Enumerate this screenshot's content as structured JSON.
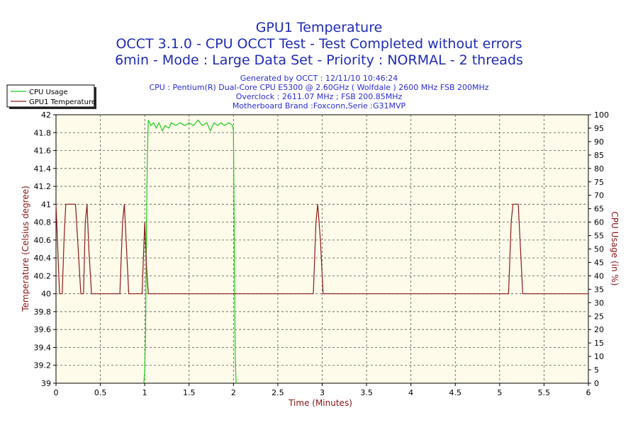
{
  "header": {
    "title_lines": [
      "GPU1 Temperature",
      "OCCT 3.1.0 - CPU OCCT Test - Test Completed without errors",
      "6min - Mode : Large Data Set - Priority : NORMAL - 2 threads"
    ],
    "info_lines": [
      "Generated by OCCT : 12/11/10 10:46:24",
      "CPU : Pentium(R) Dual-Core CPU E5300 @ 2.60GHz ( Wolfdale ) 2600 MHz FSB 200MHz",
      "Overclock : 2611.07 MHz ; FSB 200.85MHz",
      "Motherboard Brand :Foxconn,Serie :G31MVP"
    ]
  },
  "colors": {
    "cpu_usage": "#19cc19",
    "gpu_temp": "#8b1a1a",
    "plot_bg": "#fffbea",
    "grid": "#555555",
    "title": "#1f2bb3",
    "info": "#2b2bd6"
  },
  "chart_data": {
    "type": "line",
    "xlabel": "Time (Minutes)",
    "ylabel": "Temperature (Celsius degree)",
    "y2label": "CPU Usage (in %)",
    "xlim": [
      0,
      6
    ],
    "ylim": [
      39,
      42
    ],
    "y2lim": [
      0,
      100
    ],
    "grid": true,
    "legend_position": "top-left",
    "x_ticks": [
      "0",
      "0.5",
      "1",
      "1.5",
      "2",
      "2.5",
      "3",
      "3.5",
      "4",
      "4.5",
      "5",
      "5.5",
      "6"
    ],
    "y_ticks": [
      "39",
      "39.2",
      "39.4",
      "39.6",
      "39.8",
      "40",
      "40.2",
      "40.4",
      "40.6",
      "40.8",
      "41",
      "41.2",
      "41.4",
      "41.6",
      "41.8",
      "42"
    ],
    "y2_ticks": [
      "0",
      "5",
      "10",
      "15",
      "20",
      "25",
      "30",
      "35",
      "40",
      "45",
      "50",
      "55",
      "60",
      "65",
      "70",
      "75",
      "80",
      "85",
      "90",
      "95",
      "100"
    ],
    "series": [
      {
        "name": "CPU Usage",
        "axis": "right",
        "points": [
          [
            0.99,
            0
          ],
          [
            1.0,
            5
          ],
          [
            1.01,
            20
          ],
          [
            1.02,
            60
          ],
          [
            1.03,
            85
          ],
          [
            1.04,
            98
          ],
          [
            1.07,
            96
          ],
          [
            1.1,
            97
          ],
          [
            1.13,
            95
          ],
          [
            1.16,
            97
          ],
          [
            1.2,
            94
          ],
          [
            1.23,
            96
          ],
          [
            1.27,
            95
          ],
          [
            1.3,
            97
          ],
          [
            1.35,
            96
          ],
          [
            1.4,
            97
          ],
          [
            1.45,
            96
          ],
          [
            1.5,
            97
          ],
          [
            1.55,
            96
          ],
          [
            1.6,
            98
          ],
          [
            1.65,
            96
          ],
          [
            1.7,
            97
          ],
          [
            1.74,
            94
          ],
          [
            1.78,
            97
          ],
          [
            1.82,
            96
          ],
          [
            1.86,
            97
          ],
          [
            1.9,
            96
          ],
          [
            1.95,
            97
          ],
          [
            1.99,
            96
          ],
          [
            2.0,
            94
          ],
          [
            2.01,
            50
          ],
          [
            2.02,
            10
          ],
          [
            2.03,
            0
          ]
        ]
      },
      {
        "name": "GPU1 Temperature",
        "axis": "left",
        "points": [
          [
            0.0,
            41.0
          ],
          [
            0.02,
            40.5
          ],
          [
            0.04,
            40.0
          ],
          [
            0.07,
            40.0
          ],
          [
            0.09,
            40.6
          ],
          [
            0.11,
            41.0
          ],
          [
            0.22,
            41.0
          ],
          [
            0.25,
            40.5
          ],
          [
            0.28,
            40.0
          ],
          [
            0.31,
            40.0
          ],
          [
            0.33,
            40.8
          ],
          [
            0.35,
            41.0
          ],
          [
            0.37,
            40.5
          ],
          [
            0.4,
            40.0
          ],
          [
            0.72,
            40.0
          ],
          [
            0.75,
            40.8
          ],
          [
            0.77,
            41.0
          ],
          [
            0.79,
            40.6
          ],
          [
            0.82,
            40.0
          ],
          [
            0.97,
            40.0
          ],
          [
            1.0,
            40.8
          ],
          [
            1.02,
            40.3
          ],
          [
            1.04,
            40.0
          ],
          [
            2.9,
            40.0
          ],
          [
            2.93,
            40.8
          ],
          [
            2.95,
            41.0
          ],
          [
            2.98,
            40.6
          ],
          [
            3.01,
            40.0
          ],
          [
            5.1,
            40.0
          ],
          [
            5.13,
            40.8
          ],
          [
            5.15,
            41.0
          ],
          [
            5.21,
            41.0
          ],
          [
            5.23,
            40.6
          ],
          [
            5.26,
            40.0
          ],
          [
            6.0,
            40.0
          ]
        ]
      }
    ]
  }
}
